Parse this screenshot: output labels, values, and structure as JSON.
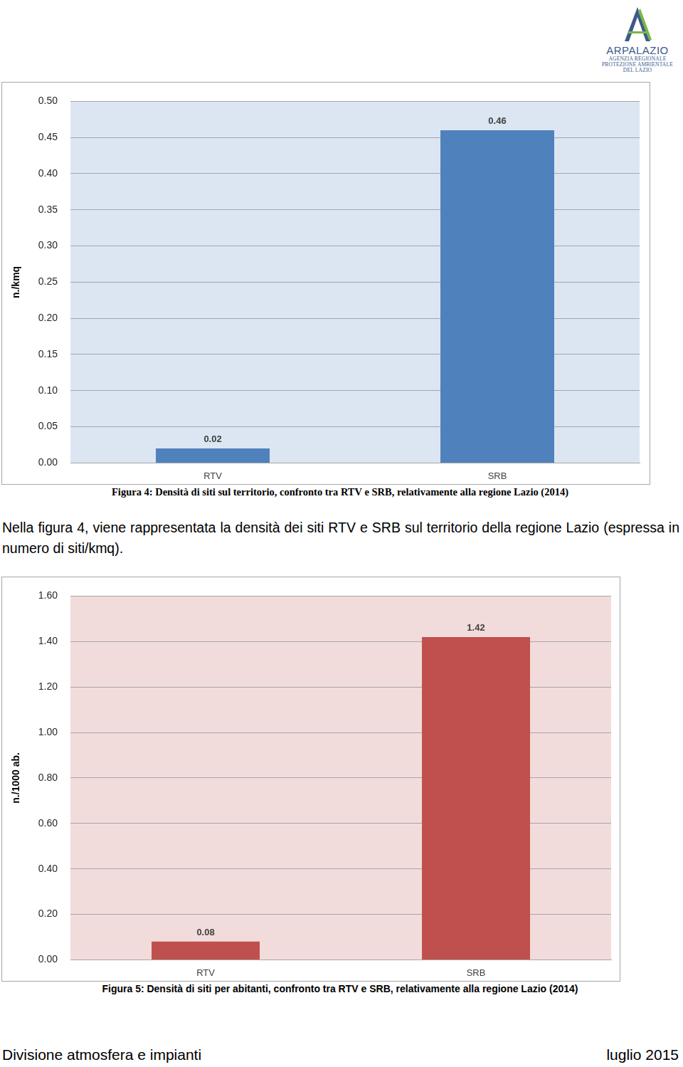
{
  "header": {
    "logo": {
      "name": "ARPALAZIO",
      "lines": [
        "AGENZIA REGIONALE",
        "PROTEZIONE AMBIENTALE",
        "DEL LAZIO"
      ]
    }
  },
  "chart_data": [
    {
      "type": "bar",
      "title": "Figura 4: Densità di siti sul territorio, confronto tra RTV e SRB, relativamente alla regione Lazio (2014)",
      "y_label": "n./kmq",
      "categories": [
        "RTV",
        "SRB"
      ],
      "values": [
        0.02,
        0.46
      ],
      "color": "#4f81bd",
      "ylim": [
        0,
        0.5
      ],
      "yticks": [
        {
          "value": 0,
          "label": "0.00"
        },
        {
          "value": 0.05,
          "label": "0.05"
        },
        {
          "value": 0.1,
          "label": "0.10"
        },
        {
          "value": 0.15,
          "label": "0.15"
        },
        {
          "value": 0.2,
          "label": "0.20"
        },
        {
          "value": 0.25,
          "label": "0.25"
        },
        {
          "value": 0.3,
          "label": "0.30"
        },
        {
          "value": 0.35,
          "label": "0.35"
        },
        {
          "value": 0.4,
          "label": "0.40"
        },
        {
          "value": 0.45,
          "label": "0.45"
        },
        {
          "value": 0.5,
          "label": "0.50"
        }
      ],
      "grid": true,
      "data_labels": true
    },
    {
      "type": "bar",
      "title": "Figura 5: Densità di siti per abitanti, confronto tra RTV e SRB, relativamente alla regione Lazio (2014)",
      "y_label": "n./1000 ab.",
      "categories": [
        "RTV",
        "SRB"
      ],
      "values": [
        0.08,
        1.42
      ],
      "color": "#c0504d",
      "ylim": [
        0,
        1.6
      ],
      "yticks": [
        {
          "value": 0,
          "label": "0.00"
        },
        {
          "value": 0.2,
          "label": "0.20"
        },
        {
          "value": 0.4,
          "label": "0.40"
        },
        {
          "value": 0.6,
          "label": "0.60"
        },
        {
          "value": 0.8,
          "label": "0.80"
        },
        {
          "value": 1,
          "label": "1.00"
        },
        {
          "value": 1.2,
          "label": "1.20"
        },
        {
          "value": 1.4,
          "label": "1.40"
        },
        {
          "value": 1.6,
          "label": "1.60"
        }
      ],
      "grid": true,
      "data_labels": true
    }
  ],
  "body": {
    "paragraph": "Nella figura 4, viene rappresentata la densità dei siti RTV e SRB sul territorio della regione Lazio (espressa in numero di siti/kmq)."
  },
  "footer": {
    "left": "Divisione atmosfera e impianti",
    "right": "luglio 2015"
  }
}
